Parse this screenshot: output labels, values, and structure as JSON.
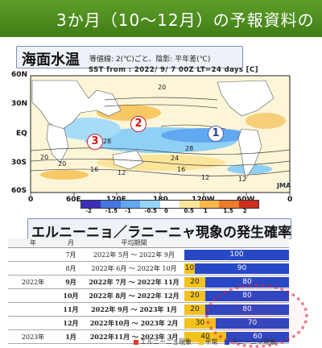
{
  "header": {
    "title": "3か月（10〜12月）の予報資料の"
  },
  "sst": {
    "title": "海面水温",
    "subtitle": "等値線: 2(℃)ごと、陰影: 平年差(℃)",
    "map_header": "SST   from : 2022/ 9/ 7 00Z  LT=24 days  [C]",
    "lat_ticks": [
      "60N",
      "30N",
      "EQ",
      "30S",
      "60S"
    ],
    "lon_ticks": [
      "0",
      "60E",
      "120E",
      "180",
      "120W",
      "60W",
      "0"
    ],
    "colorbar_ticks": [
      "-2",
      "-1.5",
      "-1",
      "-0.5",
      "0",
      "0.5",
      "1",
      "1.5",
      "2"
    ],
    "colorbar_colors": [
      "#3b2fb8",
      "#4575e0",
      "#62a8f0",
      "#97d4f8",
      "#ffffff",
      "#fbe59a",
      "#f8b84a",
      "#ee7a2a",
      "#cc2f1c"
    ],
    "markers": [
      "1",
      "2",
      "3"
    ],
    "contour_labels": [
      "20",
      "28",
      "28",
      "20",
      "16",
      "12",
      "24",
      "16",
      "12",
      "20",
      "12"
    ],
    "watermark": "JMA"
  },
  "prob": {
    "title": "エルニーニョ／ラニーニャ現象の発生確率",
    "headers": [
      "年",
      "月",
      "平均期間"
    ],
    "rows": [
      {
        "year": "",
        "month": "7月",
        "period": "2022年 5月 〜 2022年 9月",
        "red": 0,
        "yellow": 0,
        "blue": 100
      },
      {
        "year": "",
        "month": "8月",
        "period": "2022年 6月 〜 2022年 10月",
        "red": 0,
        "yellow": 10,
        "blue": 90
      },
      {
        "year": "2022年",
        "month": "9月",
        "period": "2022年 7月 〜 2022年 11月",
        "red": 0,
        "yellow": 20,
        "blue": 80
      },
      {
        "year": "",
        "month": "10月",
        "period": "2022年 8月 〜 2022年 12月",
        "red": 0,
        "yellow": 20,
        "blue": 80
      },
      {
        "year": "",
        "month": "11月",
        "period": "2022年 9月 〜 2023年 1月",
        "red": 0,
        "yellow": 20,
        "blue": 80
      },
      {
        "year": "",
        "month": "12月",
        "period": "2022年10月 〜 2023年 2月",
        "red": 0,
        "yellow": 30,
        "blue": 70
      },
      {
        "year": "2023年",
        "month": "1月",
        "period": "2022年11月 〜 2023年 3月",
        "red": 0,
        "yellow": 40,
        "blue": 60
      }
    ],
    "legend": [
      "エルニーニョ現象",
      "平常",
      "ラニーニャ現象"
    ],
    "legend_colors": [
      "#e23a2a",
      "#f3c21f",
      "#2948c6"
    ]
  }
}
